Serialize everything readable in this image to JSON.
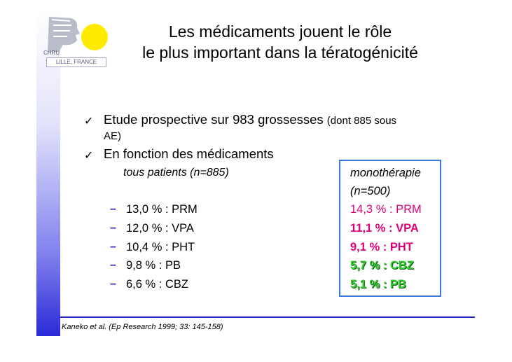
{
  "logo": {
    "chru": "CHRU",
    "city": "LILLE, FRANCE"
  },
  "title": {
    "line1": "Les médicaments jouent le rôle",
    "line2": "le plus important dans la tératogénicité"
  },
  "bullets": [
    {
      "main": "Etude prospective sur 983 grossesses",
      "note": "(dont 885 sous",
      "note2": "AE)"
    },
    {
      "main": "En fonction des médicaments"
    }
  ],
  "all_patients": {
    "header": "tous patients (n=885)",
    "items": [
      "13,0 % : PRM",
      "12,0 % : VPA",
      "10,4 % : PHT",
      "9,8 % : PB",
      "6,6 % : CBZ"
    ]
  },
  "monotherapy": {
    "header1": "monothérapie",
    "header2": "(n=500)",
    "items": [
      "14,3 % : PRM",
      "11,1 % : VPA",
      "9,1 % : PHT",
      "5,7 % : CBZ",
      "5,1 % : PB"
    ],
    "colors": {
      "pink": "#e0007a",
      "green": "#33cc33"
    }
  },
  "reference": "Kaneko et al. (Ep Research 1999; 33: 145-158)",
  "icons": {
    "bullet": "check-mark-icon",
    "sub_bullet": "dash-icon"
  }
}
